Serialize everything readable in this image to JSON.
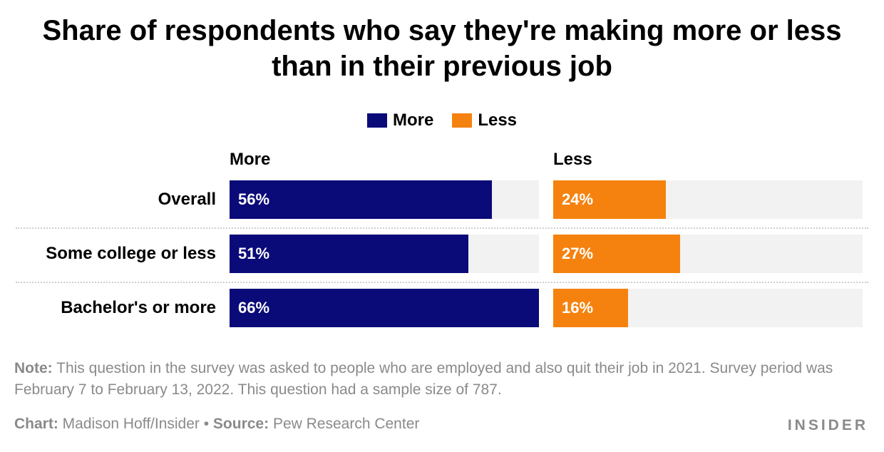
{
  "title": "Share of respondents who say they're making more or less than in their previous job",
  "legend": [
    {
      "label": "More",
      "color": "#0a0a78"
    },
    {
      "label": "Less",
      "color": "#f5820f"
    }
  ],
  "panels": {
    "more_header": "More",
    "less_header": "Less"
  },
  "chart_data": {
    "type": "bar",
    "orientation": "horizontal",
    "categories": [
      "Overall",
      "Some college or less",
      "Bachelor's or more"
    ],
    "series": [
      {
        "name": "More",
        "values": [
          56,
          51,
          66
        ],
        "labels": [
          "56%",
          "51%",
          "66%"
        ],
        "color": "#0a0a78"
      },
      {
        "name": "Less",
        "values": [
          24,
          27,
          16
        ],
        "labels": [
          "24%",
          "27%",
          "16%"
        ],
        "color": "#f5820f"
      }
    ],
    "xlim_more": [
      0,
      66
    ],
    "xlim_less": [
      0,
      66
    ],
    "unit": "%"
  },
  "note": {
    "label": "Note:",
    "text": " This question in the survey was asked to people who are employed and also quit their job in 2021. Survey period was February 7 to February 13, 2022. This question had a sample size of 787."
  },
  "credits": {
    "chart_label": "Chart:",
    "chart_text": " Madison Hoff/Insider",
    "separator": " • ",
    "source_label": "Source:",
    "source_text": " Pew Research Center"
  },
  "brand": "INSIDER"
}
